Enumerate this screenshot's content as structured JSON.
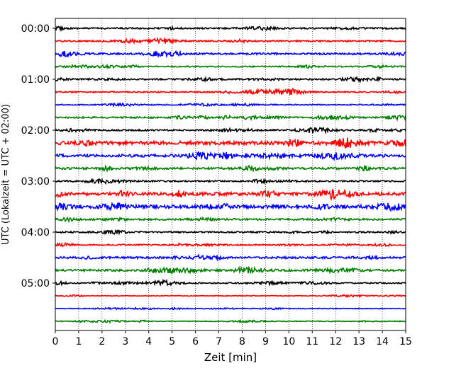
{
  "chart_data": {
    "type": "line",
    "title": "",
    "xlabel": "Zeit  [min]",
    "ylabel": "UTC (Lokalzeit = UTC + 02:00)",
    "xlim": [
      0,
      15
    ],
    "x_ticks": [
      "0",
      "1",
      "2",
      "3",
      "4",
      "5",
      "6",
      "7",
      "8",
      "9",
      "10",
      "11",
      "12",
      "13",
      "14",
      "15"
    ],
    "y_ticks": [
      "00:00",
      "01:00",
      "02:00",
      "03:00",
      "04:00",
      "05:00"
    ],
    "grid": "vertical dotted lines at each minute",
    "trace_colors": [
      "#000000",
      "#ff0000",
      "#0000ff",
      "#008000"
    ],
    "series": [
      {
        "label": "00:00",
        "color": "#000000",
        "amplitude": 0.6
      },
      {
        "label": "00:15",
        "color": "#ff0000",
        "amplitude": 0.6
      },
      {
        "label": "00:30",
        "color": "#0000ff",
        "amplitude": 0.7
      },
      {
        "label": "00:45",
        "color": "#008000",
        "amplitude": 0.5
      },
      {
        "label": "01:00",
        "color": "#000000",
        "amplitude": 0.6
      },
      {
        "label": "01:15",
        "color": "#ff0000",
        "amplitude": 0.5
      },
      {
        "label": "01:30",
        "color": "#0000ff",
        "amplitude": 0.4
      },
      {
        "label": "01:45",
        "color": "#008000",
        "amplitude": 0.6
      },
      {
        "label": "02:00",
        "color": "#000000",
        "amplitude": 0.6
      },
      {
        "label": "02:15",
        "color": "#ff0000",
        "amplitude": 1.4
      },
      {
        "label": "02:30",
        "color": "#0000ff",
        "amplitude": 1.1
      },
      {
        "label": "02:45",
        "color": "#008000",
        "amplitude": 0.8
      },
      {
        "label": "03:00",
        "color": "#000000",
        "amplitude": 0.6
      },
      {
        "label": "03:15",
        "color": "#ff0000",
        "amplitude": 1.2
      },
      {
        "label": "03:30",
        "color": "#0000ff",
        "amplitude": 1.3
      },
      {
        "label": "03:45",
        "color": "#008000",
        "amplitude": 0.7
      },
      {
        "label": "04:00",
        "color": "#000000",
        "amplitude": 0.6
      },
      {
        "label": "04:15",
        "color": "#ff0000",
        "amplitude": 0.5
      },
      {
        "label": "04:30",
        "color": "#0000ff",
        "amplitude": 0.8
      },
      {
        "label": "04:45",
        "color": "#008000",
        "amplitude": 0.8
      },
      {
        "label": "05:00",
        "color": "#000000",
        "amplitude": 0.5
      },
      {
        "label": "05:15",
        "color": "#ff0000",
        "amplitude": 0.3
      },
      {
        "label": "05:30",
        "color": "#0000ff",
        "amplitude": 0.3
      },
      {
        "label": "05:45",
        "color": "#008000",
        "amplitude": 0.3
      }
    ]
  }
}
